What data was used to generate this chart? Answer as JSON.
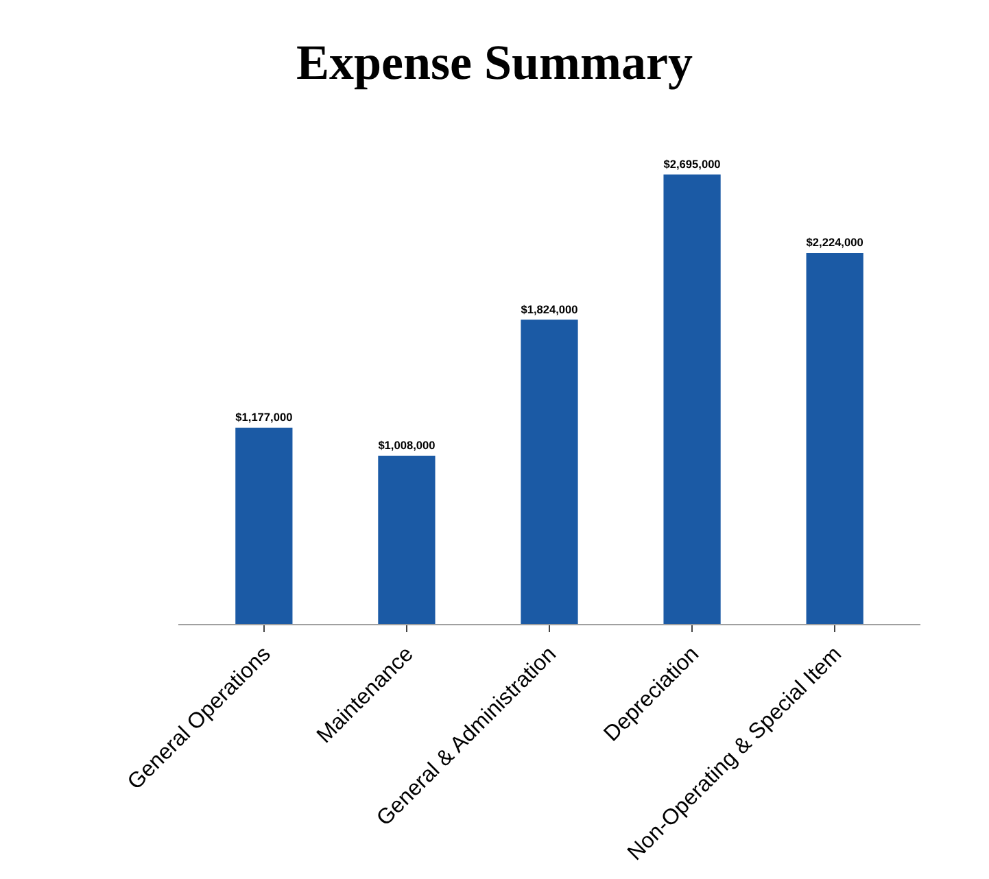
{
  "chart_data": {
    "type": "bar",
    "title": "Expense Summary",
    "categories": [
      "General Operations",
      "Maintenance",
      "General & Administration",
      "Depreciation",
      "Non-Operating & Special Item"
    ],
    "values": [
      1177000,
      1008000,
      1824000,
      2695000,
      2224000
    ],
    "value_labels": [
      "$1,177,000",
      "$1,008,000",
      "$1,824,000",
      "$2,695,000",
      "$2,224,000"
    ],
    "color": "#1b5aa5"
  }
}
